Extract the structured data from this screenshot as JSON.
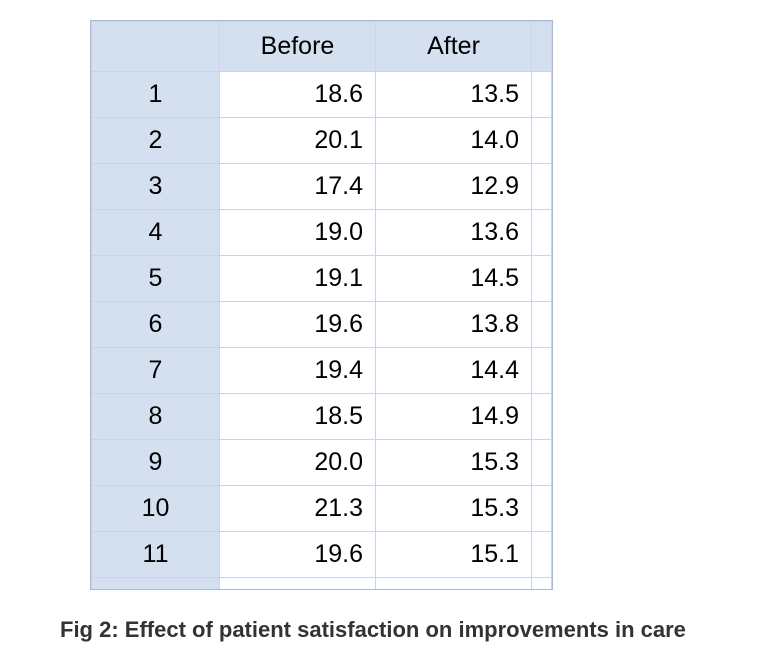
{
  "table": {
    "columns": [
      "",
      "Before",
      "After"
    ],
    "rows": [
      {
        "index": "1",
        "before": "18.6",
        "after": "13.5"
      },
      {
        "index": "2",
        "before": "20.1",
        "after": "14.0"
      },
      {
        "index": "3",
        "before": "17.4",
        "after": "12.9"
      },
      {
        "index": "4",
        "before": "19.0",
        "after": "13.6"
      },
      {
        "index": "5",
        "before": "19.1",
        "after": "14.5"
      },
      {
        "index": "6",
        "before": "19.6",
        "after": "13.8"
      },
      {
        "index": "7",
        "before": "19.4",
        "after": "14.4"
      },
      {
        "index": "8",
        "before": "18.5",
        "after": "14.9"
      },
      {
        "index": "9",
        "before": "20.0",
        "after": "15.3"
      },
      {
        "index": "10",
        "before": "21.3",
        "after": "15.3"
      },
      {
        "index": "11",
        "before": "19.6",
        "after": "15.1"
      }
    ],
    "header_bg": "#d4e0f0",
    "cell_bg": "#ffffff",
    "border_color": "#c8d4e8",
    "font_size": 25
  },
  "caption": "Fig 2: Effect of patient satisfaction on improvements in care"
}
